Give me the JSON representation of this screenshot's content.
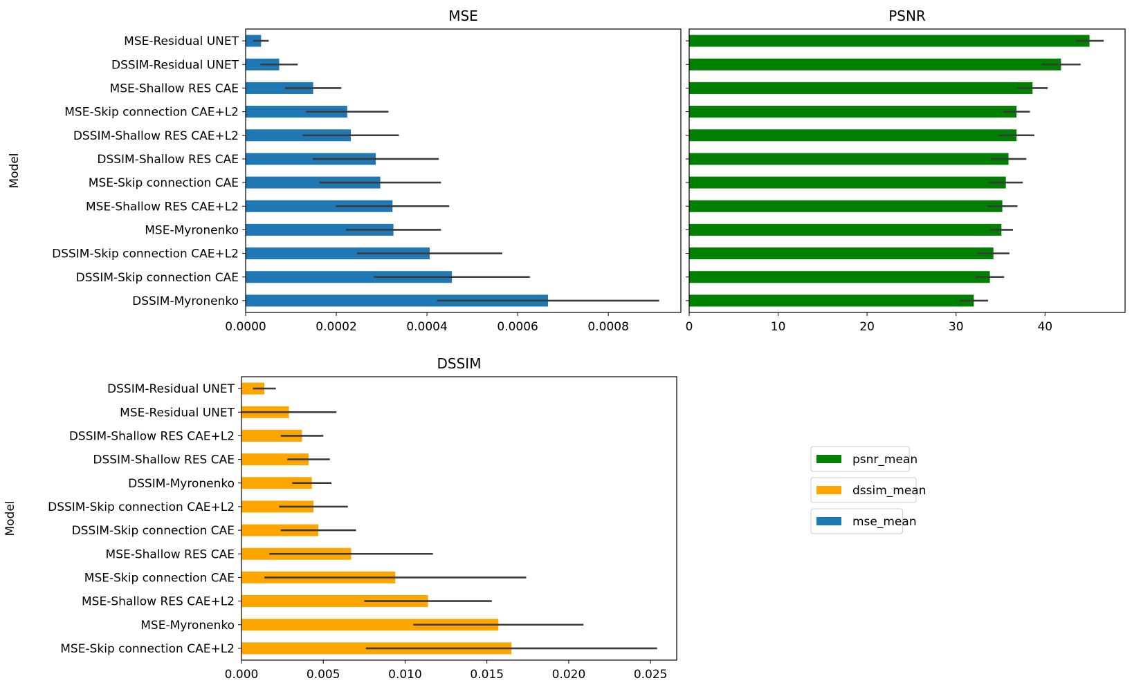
{
  "chart_data": [
    {
      "type": "bar",
      "orientation": "horizontal",
      "title": "MSE",
      "ylabel": "Model",
      "xlabel": "",
      "color": "#1f77b4",
      "xlim": [
        0,
        0.00096
      ],
      "xticks": [
        "0.0000",
        "0.0002",
        "0.0004",
        "0.0006",
        "0.0008"
      ],
      "xtick_values": [
        0,
        0.0002,
        0.0004,
        0.0006,
        0.0008
      ],
      "categories": [
        "MSE-Residual UNET",
        "DSSIM-Residual UNET",
        "MSE-Shallow RES CAE",
        "MSE-Skip connection CAE+L2",
        "DSSIM-Shallow RES CAE+L2",
        "DSSIM-Shallow RES CAE",
        "MSE-Skip connection CAE",
        "MSE-Shallow RES CAE+L2",
        "MSE-Myronenko",
        "DSSIM-Skip connection CAE+L2",
        "DSSIM-Skip connection CAE",
        "DSSIM-Myronenko"
      ],
      "values": [
        3.4e-05,
        7.4e-05,
        0.000149,
        0.000224,
        0.000232,
        0.000287,
        0.000297,
        0.000324,
        0.000326,
        0.000406,
        0.000455,
        0.000667
      ],
      "errors": [
        1.7e-05,
        4.1e-05,
        6.2e-05,
        9.1e-05,
        0.000106,
        0.000139,
        0.000134,
        0.000125,
        0.000105,
        0.00016,
        0.000172,
        0.000245
      ]
    },
    {
      "type": "bar",
      "orientation": "horizontal",
      "title": "PSNR",
      "ylabel": "",
      "xlabel": "",
      "color": "#008000",
      "xlim": [
        0,
        49
      ],
      "xticks": [
        "0",
        "10",
        "20",
        "30",
        "40"
      ],
      "xtick_values": [
        0,
        10,
        20,
        30,
        40
      ],
      "categories": [
        "MSE-Residual UNET",
        "DSSIM-Residual UNET",
        "MSE-Shallow RES CAE",
        "MSE-Skip connection CAE+L2",
        "DSSIM-Shallow RES CAE+L2",
        "DSSIM-Shallow RES CAE",
        "MSE-Skip connection CAE",
        "MSE-Shallow RES CAE+L2",
        "MSE-Myronenko",
        "DSSIM-Skip connection CAE+L2",
        "DSSIM-Skip connection CAE",
        "DSSIM-Myronenko"
      ],
      "values": [
        45.0,
        41.8,
        38.6,
        36.8,
        36.8,
        35.9,
        35.6,
        35.2,
        35.1,
        34.2,
        33.8,
        32.0
      ],
      "errors": [
        1.6,
        2.2,
        1.7,
        1.5,
        2.0,
        2.0,
        1.9,
        1.7,
        1.3,
        1.8,
        1.6,
        1.6
      ]
    },
    {
      "type": "bar",
      "orientation": "horizontal",
      "title": "DSSIM",
      "ylabel": "Model",
      "xlabel": "",
      "color": "#ffa500",
      "xlim": [
        0,
        0.0266
      ],
      "xticks": [
        "0.000",
        "0.005",
        "0.010",
        "0.015",
        "0.020",
        "0.025"
      ],
      "xtick_values": [
        0,
        0.005,
        0.01,
        0.015,
        0.02,
        0.025
      ],
      "categories": [
        "DSSIM-Residual UNET",
        "MSE-Residual UNET",
        "DSSIM-Shallow RES CAE+L2",
        "DSSIM-Shallow RES CAE",
        "DSSIM-Myronenko",
        "DSSIM-Skip connection CAE+L2",
        "DSSIM-Skip connection CAE",
        "MSE-Shallow RES CAE",
        "MSE-Skip connection CAE",
        "MSE-Shallow RES CAE+L2",
        "MSE-Myronenko",
        "MSE-Skip connection CAE+L2"
      ],
      "values": [
        0.0014,
        0.0029,
        0.0037,
        0.0041,
        0.0043,
        0.0044,
        0.0047,
        0.0067,
        0.0094,
        0.0114,
        0.0157,
        0.0165
      ],
      "errors": [
        0.0007,
        0.0029,
        0.0013,
        0.0013,
        0.0012,
        0.0021,
        0.0023,
        0.005,
        0.008,
        0.0039,
        0.0052,
        0.0089
      ]
    }
  ],
  "legend": {
    "placement": "right of DSSIM chart",
    "items": [
      {
        "label": "psnr_mean",
        "color": "#008000"
      },
      {
        "label": "dssim_mean",
        "color": "#ffa500"
      },
      {
        "label": "mse_mean",
        "color": "#1f77b4"
      }
    ]
  }
}
